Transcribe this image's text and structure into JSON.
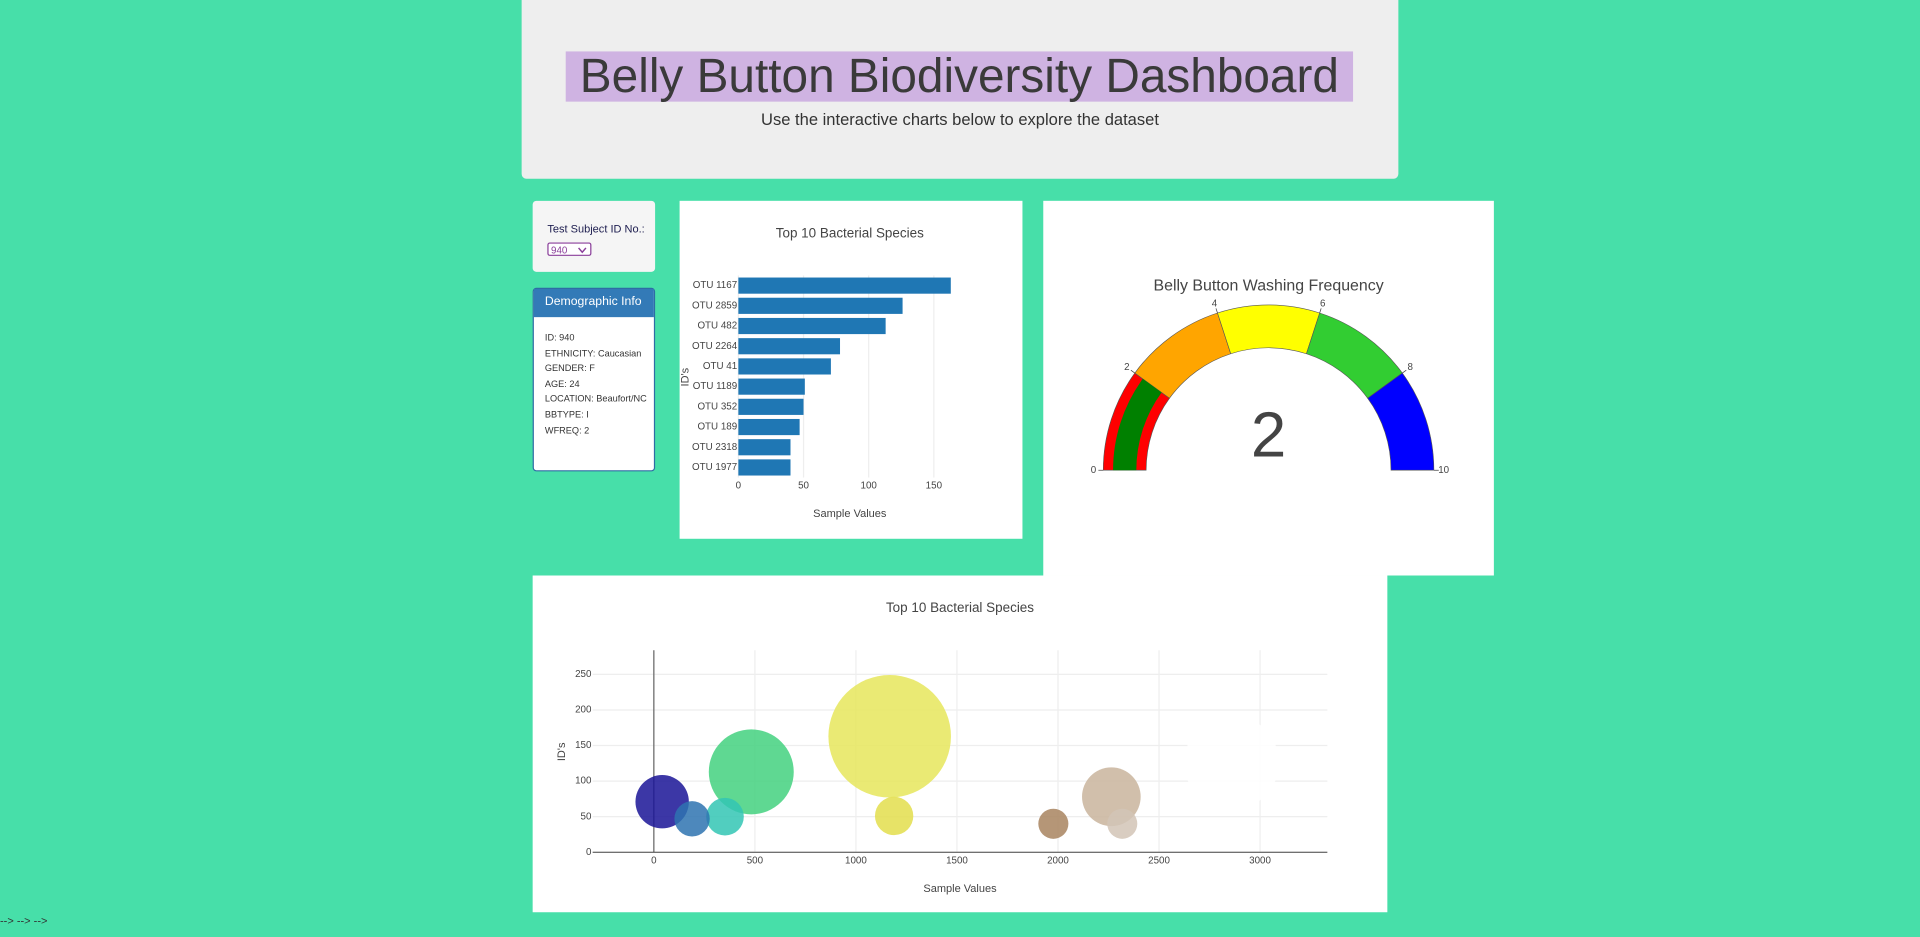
{
  "header": {
    "title": "Belly Button Biodiversity Dashboard",
    "subtitle": "Use the interactive charts below to explore the dataset"
  },
  "selector": {
    "label": "Test Subject ID No.:",
    "value": "940"
  },
  "demographics": {
    "title": "Demographic Info",
    "items": [
      "ID: 940",
      "ETHNICITY: Caucasian",
      "GENDER: F",
      "AGE: 24",
      "LOCATION: Beaufort/NC",
      "BBTYPE: I",
      "WFREQ: 2"
    ]
  },
  "footer": "--> --> -->",
  "chart_data": [
    {
      "type": "bar",
      "title": "Top 10 Bacterial Species",
      "x_label": "Sample Values",
      "y_label": "ID's",
      "categories": [
        "OTU 1167",
        "OTU 2859",
        "OTU 482",
        "OTU 2264",
        "OTU 41",
        "OTU 1189",
        "OTU 352",
        "OTU 189",
        "OTU 2318",
        "OTU 1977"
      ],
      "values": [
        163,
        126,
        113,
        78,
        71,
        51,
        50,
        47,
        40,
        40
      ],
      "color": "#1f77b4",
      "xlim": [
        0,
        171
      ],
      "xticks": [
        0,
        50,
        100,
        150
      ],
      "grid": true
    },
    {
      "type": "gauge",
      "title": "Belly Button Washing Frequency",
      "value": 2,
      "range": [
        0,
        10
      ],
      "ticks": [
        0,
        2,
        4,
        6,
        8,
        10
      ],
      "bar_color": "green",
      "steps": [
        {
          "range": [
            0,
            2
          ],
          "color": "red"
        },
        {
          "range": [
            2,
            4
          ],
          "color": "orange"
        },
        {
          "range": [
            4,
            6
          ],
          "color": "yellow"
        },
        {
          "range": [
            6,
            8
          ],
          "color": "limegreen"
        },
        {
          "range": [
            8,
            10
          ],
          "color": "blue"
        }
      ]
    },
    {
      "type": "bubble",
      "title": "Top 10 Bacterial Species",
      "x_label": "Sample Values",
      "y_label": "ID's",
      "x": [
        1167,
        2859,
        482,
        2264,
        41,
        1189,
        352,
        189,
        2318,
        1977
      ],
      "values": [
        163,
        126,
        113,
        78,
        71,
        51,
        50,
        47,
        40,
        40
      ],
      "sizes": [
        163,
        126,
        113,
        78,
        71,
        51,
        50,
        47,
        40,
        40
      ],
      "colors": [
        "#e6e65c",
        "#ffffff",
        "#43d17f",
        "#c9b49c",
        "#1a1496",
        "#e3de4c",
        "#33c6b4",
        "#2e73b0",
        "#d2c4b6",
        "#a8845f"
      ],
      "opacity": 0.85,
      "xlim": [
        -303,
        3333
      ],
      "ylim": [
        0,
        284
      ],
      "xticks": [
        0,
        500,
        1000,
        1500,
        2000,
        2500,
        3000
      ],
      "yticks": [
        0,
        50,
        100,
        150,
        200,
        250
      ],
      "grid": true
    }
  ]
}
